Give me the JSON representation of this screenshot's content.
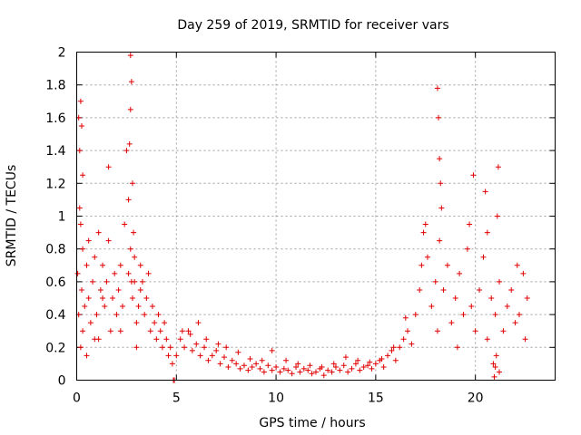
{
  "chart_data": {
    "type": "scatter",
    "title": "Day 259 of 2019, SRMTID for receiver vars",
    "xlabel": "GPS time / hours",
    "ylabel": "SRMTID / TECUs",
    "xlim": [
      0,
      24
    ],
    "ylim": [
      0,
      2
    ],
    "xticks": [
      0,
      5,
      10,
      15,
      20
    ],
    "xtick_labels": [
      "0",
      "5",
      "10",
      "15",
      "20"
    ],
    "yticks": [
      0,
      0.2,
      0.4,
      0.6,
      0.8,
      1,
      1.2,
      1.4,
      1.6,
      1.8,
      2
    ],
    "ytick_labels": [
      "0",
      "0.2",
      "0.4",
      "0.6",
      "0.8",
      "1",
      "1.2",
      "1.4",
      "1.6",
      "1.8",
      "2"
    ],
    "grid": true,
    "marker_color": "#e00000",
    "series": [
      {
        "name": "receiver vars",
        "marker": "plus",
        "x": [
          0.05,
          0.1,
          0.15,
          0.2,
          0.25,
          0.3,
          0.4,
          0.5,
          0.6,
          0.7,
          0.8,
          0.9,
          1.0,
          1.1,
          1.2,
          1.3,
          1.4,
          1.5,
          1.6,
          1.7,
          1.8,
          1.9,
          2.0,
          2.1,
          2.2,
          2.3,
          2.4,
          2.5,
          2.6,
          2.7,
          2.75,
          2.8,
          2.9,
          3.0,
          3.1,
          3.2,
          3.3,
          3.4,
          3.5,
          3.6,
          3.7,
          3.8,
          3.9,
          4.0,
          4.1,
          4.2,
          4.3,
          4.4,
          4.5,
          4.6,
          4.7,
          4.8,
          0.2,
          0.25,
          0.3,
          0.15,
          2.7,
          2.75,
          2.7,
          2.65,
          0.2,
          1.6,
          2.8,
          2.85,
          0.3,
          0.5,
          1.1,
          2.9,
          3.0,
          0.1,
          0.6,
          0.9,
          1.3,
          2.2,
          2.6,
          3.2,
          5.0,
          5.2,
          5.4,
          5.6,
          5.8,
          6.0,
          6.2,
          6.4,
          6.6,
          6.8,
          7.0,
          7.2,
          7.4,
          7.6,
          7.8,
          8.0,
          8.2,
          8.4,
          8.6,
          8.8,
          9.0,
          9.2,
          9.4,
          9.6,
          9.8,
          10.0,
          10.2,
          10.4,
          10.6,
          10.8,
          11.0,
          11.2,
          11.4,
          11.6,
          11.8,
          12.0,
          12.2,
          12.4,
          12.6,
          12.8,
          13.0,
          13.2,
          13.4,
          13.6,
          13.8,
          14.0,
          14.2,
          14.4,
          14.6,
          14.8,
          15.0,
          15.2,
          15.4,
          15.6,
          15.8,
          16.0,
          16.2,
          16.4,
          16.6,
          16.8,
          5.3,
          5.7,
          6.1,
          6.5,
          7.1,
          7.5,
          8.1,
          8.7,
          9.3,
          9.8,
          10.5,
          11.1,
          11.7,
          12.3,
          12.9,
          13.5,
          14.1,
          14.7,
          15.3,
          15.9,
          16.5,
          17.0,
          17.2,
          17.4,
          17.6,
          17.8,
          18.0,
          18.1,
          18.2,
          18.4,
          18.6,
          18.8,
          19.0,
          19.2,
          19.4,
          19.6,
          19.8,
          20.0,
          20.2,
          20.4,
          20.6,
          20.8,
          21.0,
          21.2,
          21.4,
          21.6,
          21.8,
          22.0,
          22.2,
          22.4,
          22.6,
          18.1,
          18.15,
          18.2,
          18.25,
          18.3,
          19.7,
          20.5,
          20.6,
          21.1,
          21.2,
          21.15,
          17.3,
          17.5,
          19.1,
          19.9,
          20.9,
          20.95,
          21.0,
          21.05,
          22.1,
          22.5,
          4.85,
          4.9
        ],
        "y": [
          0.65,
          1.6,
          1.4,
          0.95,
          0.55,
          0.8,
          0.45,
          0.7,
          0.5,
          0.35,
          0.6,
          0.75,
          0.4,
          0.9,
          0.55,
          0.7,
          0.45,
          0.6,
          0.85,
          0.3,
          0.5,
          0.65,
          0.4,
          0.55,
          0.7,
          0.45,
          0.95,
          1.4,
          1.1,
          0.8,
          0.6,
          0.5,
          0.75,
          0.35,
          0.45,
          0.55,
          0.6,
          0.4,
          0.5,
          0.65,
          0.3,
          0.45,
          0.35,
          0.25,
          0.4,
          0.3,
          0.2,
          0.35,
          0.25,
          0.15,
          0.2,
          0.1,
          1.7,
          1.55,
          1.25,
          1.05,
          1.98,
          1.82,
          1.65,
          1.44,
          0.2,
          1.3,
          1.2,
          0.9,
          0.3,
          0.15,
          0.25,
          0.6,
          0.2,
          0.4,
          0.85,
          0.25,
          0.5,
          0.3,
          0.65,
          0.7,
          0.15,
          0.25,
          0.2,
          0.3,
          0.18,
          0.22,
          0.15,
          0.2,
          0.12,
          0.15,
          0.18,
          0.1,
          0.14,
          0.08,
          0.12,
          0.1,
          0.07,
          0.09,
          0.06,
          0.08,
          0.1,
          0.07,
          0.05,
          0.09,
          0.06,
          0.08,
          0.05,
          0.07,
          0.06,
          0.04,
          0.08,
          0.05,
          0.07,
          0.06,
          0.04,
          0.05,
          0.07,
          0.03,
          0.06,
          0.05,
          0.08,
          0.06,
          0.09,
          0.05,
          0.07,
          0.1,
          0.06,
          0.08,
          0.09,
          0.07,
          0.1,
          0.12,
          0.08,
          0.15,
          0.18,
          0.12,
          0.2,
          0.25,
          0.3,
          0.22,
          0.3,
          0.28,
          0.35,
          0.25,
          0.22,
          0.2,
          0.17,
          0.13,
          0.12,
          0.18,
          0.12,
          0.1,
          0.09,
          0.08,
          0.1,
          0.14,
          0.12,
          0.11,
          0.13,
          0.2,
          0.38,
          0.4,
          0.55,
          0.9,
          0.75,
          0.45,
          0.6,
          0.3,
          0.85,
          0.55,
          0.7,
          0.35,
          0.5,
          0.65,
          0.4,
          0.8,
          0.45,
          0.3,
          0.55,
          0.75,
          0.25,
          0.5,
          0.4,
          0.6,
          0.3,
          0.45,
          0.55,
          0.35,
          0.4,
          0.65,
          0.5,
          1.78,
          1.6,
          1.35,
          1.2,
          1.05,
          0.95,
          1.15,
          0.9,
          1.0,
          0.05,
          1.3,
          0.7,
          0.95,
          0.2,
          1.25,
          0.1,
          0.02,
          0.08,
          0.15,
          0.7,
          0.25,
          0.0,
          0.0
        ]
      }
    ]
  }
}
